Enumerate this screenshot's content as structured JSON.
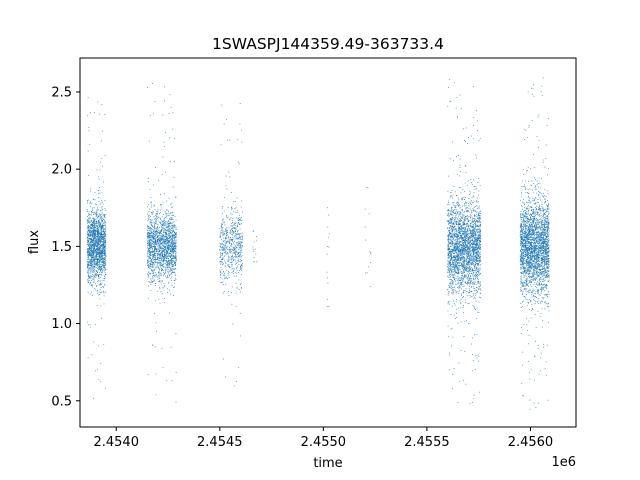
{
  "chart_data": {
    "type": "scatter",
    "title": "1SWASPJ144359.49-363733.4",
    "xlabel": "time",
    "ylabel": "flux",
    "x_offset_label": "1e6",
    "xlim": [
      2453825,
      2456220
    ],
    "ylim": [
      0.33,
      2.72
    ],
    "x_ticks": [
      2454000,
      2454500,
      2455000,
      2455500,
      2456000
    ],
    "x_tick_labels": [
      "2.4540",
      "2.4545",
      "2.4550",
      "2.4555",
      "2.4560"
    ],
    "y_ticks": [
      0.5,
      1.0,
      1.5,
      2.0,
      2.5
    ],
    "y_tick_labels": [
      "0.5",
      "1.0",
      "1.5",
      "2.0",
      "2.5"
    ],
    "marker_color": "#1f77b4",
    "grid": false,
    "seasons": [
      {
        "start": 2453860,
        "end": 2453950,
        "median_flux": 1.5,
        "spread": 0.12,
        "min_flux": 0.45,
        "max_flux": 2.55,
        "density": "high"
      },
      {
        "start": 2454150,
        "end": 2454290,
        "median_flux": 1.5,
        "spread": 0.11,
        "min_flux": 0.46,
        "max_flux": 2.6,
        "density": "high"
      },
      {
        "start": 2454500,
        "end": 2454610,
        "median_flux": 1.5,
        "spread": 0.12,
        "min_flux": 0.57,
        "max_flux": 2.45,
        "density": "medium"
      },
      {
        "start": 2454660,
        "end": 2454680,
        "median_flux": 1.5,
        "spread": 0.1,
        "min_flux": 1.4,
        "max_flux": 1.68,
        "density": "sparse"
      },
      {
        "start": 2455015,
        "end": 2455030,
        "median_flux": 1.5,
        "spread": 0.3,
        "min_flux": 1.11,
        "max_flux": 1.93,
        "density": "sparse"
      },
      {
        "start": 2455200,
        "end": 2455230,
        "median_flux": 1.5,
        "spread": 0.25,
        "min_flux": 1.23,
        "max_flux": 1.88,
        "density": "sparse"
      },
      {
        "start": 2455600,
        "end": 2455760,
        "median_flux": 1.5,
        "spread": 0.15,
        "min_flux": 0.48,
        "max_flux": 2.6,
        "density": "very-high"
      },
      {
        "start": 2455950,
        "end": 2456090,
        "median_flux": 1.5,
        "spread": 0.15,
        "min_flux": 0.44,
        "max_flux": 2.6,
        "density": "very-high"
      }
    ]
  }
}
